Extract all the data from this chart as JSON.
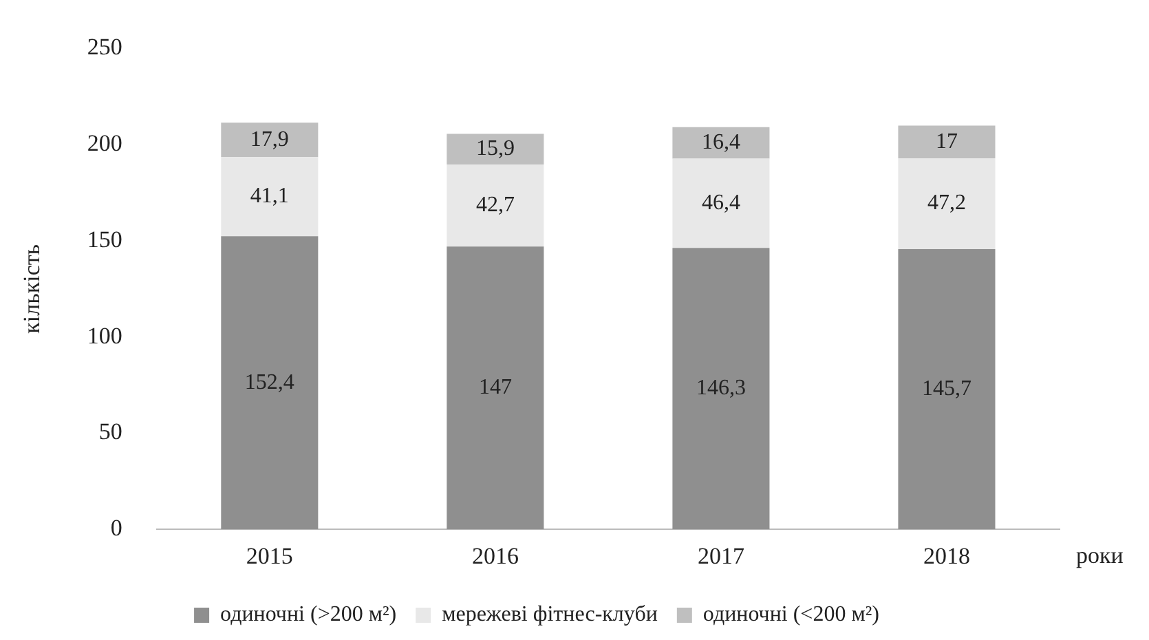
{
  "chart_data": {
    "type": "bar",
    "stacked": true,
    "xlabel": "роки",
    "ylabel": "кількість",
    "categories": [
      "2015",
      "2016",
      "2017",
      "2018"
    ],
    "series": [
      {
        "name": "одиночні (>200 м²)",
        "color": "#8f8f8f",
        "values": [
          152.4,
          147,
          146.3,
          145.7
        ],
        "value_labels": [
          "152,4",
          "147",
          "146,3",
          "145,7"
        ]
      },
      {
        "name": "мережеві фітнес-клуби",
        "color": "#e8e8e8",
        "values": [
          41.1,
          42.7,
          46.4,
          47.2
        ],
        "value_labels": [
          "41,1",
          "42,7",
          "46,4",
          "47,2"
        ]
      },
      {
        "name": "одиночні (<200 м²)",
        "color": "#bfbfbf",
        "values": [
          17.9,
          15.9,
          16.4,
          17
        ],
        "value_labels": [
          "17,9",
          "15,9",
          "16,4",
          "17"
        ]
      }
    ],
    "ylim": [
      0,
      250
    ],
    "yticks": [
      0,
      50,
      100,
      150,
      200,
      250
    ],
    "grid": false,
    "legend": "bottom"
  }
}
